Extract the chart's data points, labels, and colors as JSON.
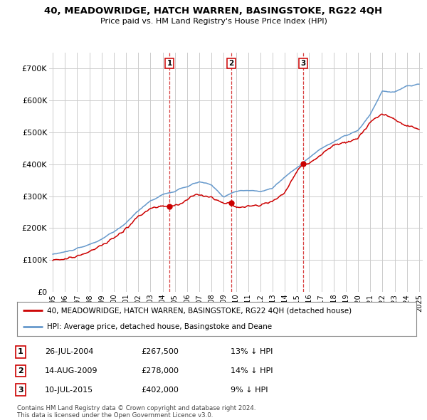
{
  "title": "40, MEADOWRIDGE, HATCH WARREN, BASINGSTOKE, RG22 4QH",
  "subtitle": "Price paid vs. HM Land Registry's House Price Index (HPI)",
  "ylim": [
    0,
    750000
  ],
  "yticks": [
    0,
    100000,
    200000,
    300000,
    400000,
    500000,
    600000,
    700000
  ],
  "ytick_labels": [
    "£0",
    "£100K",
    "£200K",
    "£300K",
    "£400K",
    "£500K",
    "£600K",
    "£700K"
  ],
  "xmin": 1994.7,
  "xmax": 2025.3,
  "sale_dates": [
    2004.57,
    2009.62,
    2015.53
  ],
  "sale_prices": [
    267500,
    278000,
    402000
  ],
  "sale_labels": [
    "1",
    "2",
    "3"
  ],
  "legend_red": "40, MEADOWRIDGE, HATCH WARREN, BASINGSTOKE, RG22 4QH (detached house)",
  "legend_blue": "HPI: Average price, detached house, Basingstoke and Deane",
  "table_rows": [
    [
      "1",
      "26-JUL-2004",
      "£267,500",
      "13% ↓ HPI"
    ],
    [
      "2",
      "14-AUG-2009",
      "£278,000",
      "14% ↓ HPI"
    ],
    [
      "3",
      "10-JUL-2015",
      "£402,000",
      "9% ↓ HPI"
    ]
  ],
  "footer": "Contains HM Land Registry data © Crown copyright and database right 2024.\nThis data is licensed under the Open Government Licence v3.0.",
  "red_color": "#cc0000",
  "blue_color": "#6699cc",
  "grid_color": "#cccccc",
  "background_color": "#ffffff"
}
